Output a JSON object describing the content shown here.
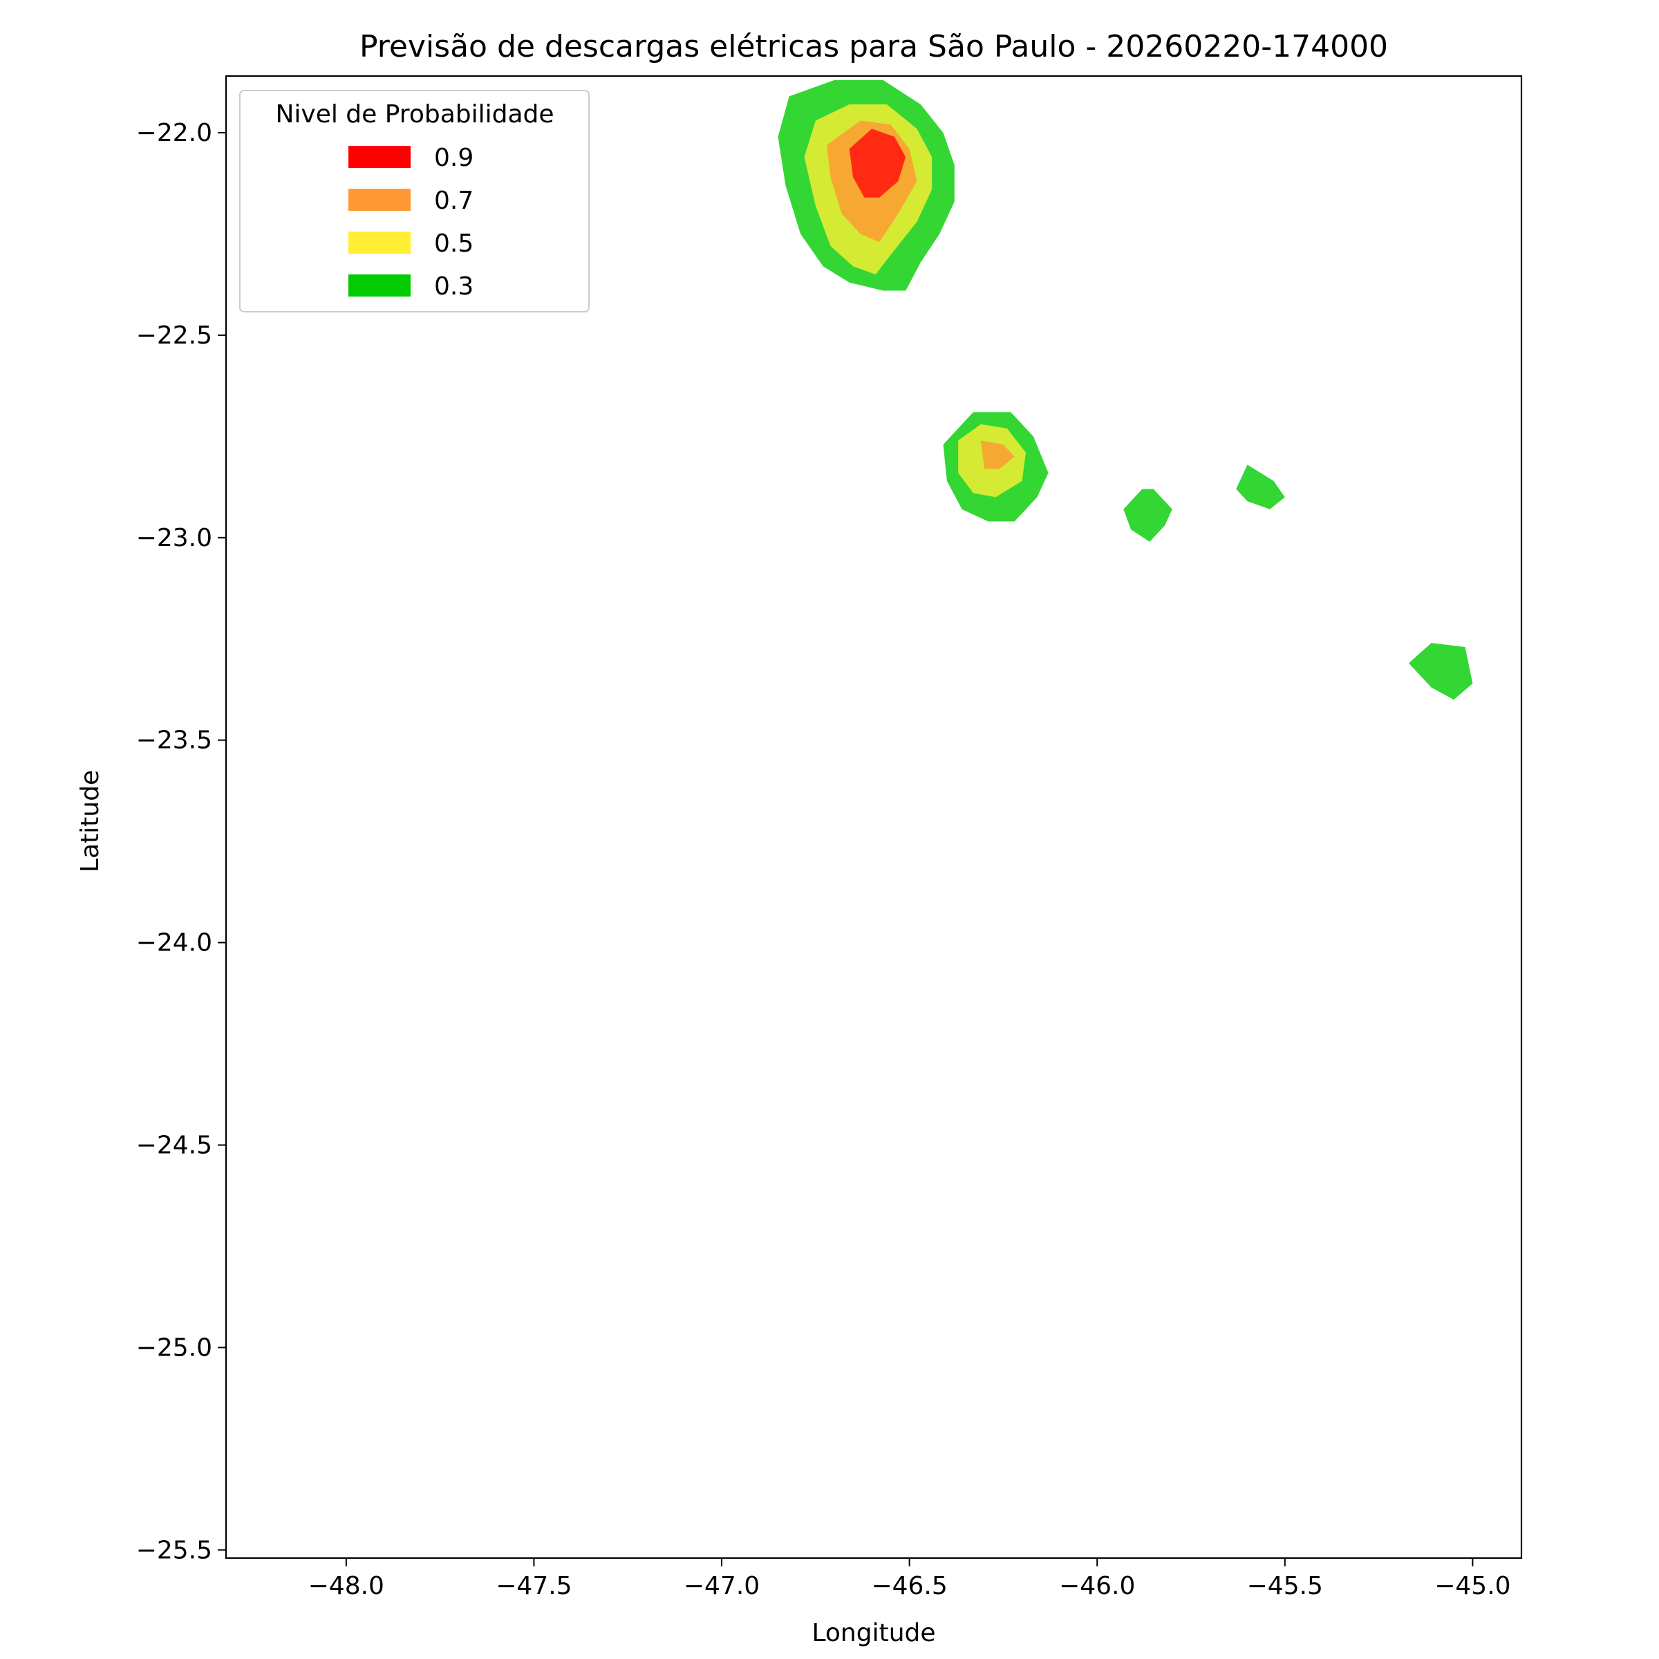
{
  "chart_data": {
    "type": "contourf",
    "title": "Previsão de descargas elétricas para São Paulo - 20260220-174000",
    "xlabel": "Longitude",
    "ylabel": "Latitude",
    "xlim": [
      -48.32,
      -44.87
    ],
    "ylim": [
      -25.52,
      -21.86
    ],
    "xticks": [
      -48.0,
      -47.5,
      -47.0,
      -46.5,
      -46.0,
      -45.5,
      -45.0
    ],
    "yticks": [
      -22.0,
      -22.5,
      -23.0,
      -23.5,
      -24.0,
      -24.5,
      -25.0,
      -25.5
    ],
    "xtick_labels": [
      "−48.0",
      "−47.5",
      "−47.0",
      "−46.5",
      "−46.0",
      "−45.5",
      "−45.0"
    ],
    "ytick_labels": [
      "−22.0",
      "−22.5",
      "−23.0",
      "−23.5",
      "−24.0",
      "−24.5",
      "−25.0",
      "−25.5"
    ],
    "grid": false,
    "legend": {
      "title": "Nivel de Probabilidade",
      "placement": "upper-left",
      "entries": [
        {
          "label": "0.9",
          "color": "#ff0000"
        },
        {
          "label": "0.7",
          "color": "#ff9933"
        },
        {
          "label": "0.5",
          "color": "#ffee33"
        },
        {
          "label": "0.3",
          "color": "#00cc00"
        }
      ]
    },
    "levels": [
      {
        "level": 0.3,
        "color": "#33d633",
        "polygons": [
          [
            [
              -46.7,
              -21.87
            ],
            [
              -46.57,
              -21.87
            ],
            [
              -46.47,
              -21.93
            ],
            [
              -46.41,
              -22.0
            ],
            [
              -46.38,
              -22.08
            ],
            [
              -46.38,
              -22.17
            ],
            [
              -46.42,
              -22.25
            ],
            [
              -46.47,
              -22.32
            ],
            [
              -46.51,
              -22.39
            ],
            [
              -46.57,
              -22.39
            ],
            [
              -46.66,
              -22.37
            ],
            [
              -46.73,
              -22.33
            ],
            [
              -46.79,
              -22.25
            ],
            [
              -46.83,
              -22.13
            ],
            [
              -46.85,
              -22.01
            ],
            [
              -46.82,
              -21.91
            ]
          ],
          [
            [
              -46.33,
              -22.69
            ],
            [
              -46.23,
              -22.69
            ],
            [
              -46.17,
              -22.75
            ],
            [
              -46.13,
              -22.84
            ],
            [
              -46.16,
              -22.9
            ],
            [
              -46.22,
              -22.96
            ],
            [
              -46.29,
              -22.96
            ],
            [
              -46.36,
              -22.93
            ],
            [
              -46.4,
              -22.86
            ],
            [
              -46.41,
              -22.77
            ]
          ],
          [
            [
              -45.88,
              -22.88
            ],
            [
              -45.85,
              -22.88
            ],
            [
              -45.8,
              -22.93
            ],
            [
              -45.82,
              -22.97
            ],
            [
              -45.86,
              -23.01
            ],
            [
              -45.91,
              -22.98
            ],
            [
              -45.93,
              -22.93
            ]
          ],
          [
            [
              -45.6,
              -22.82
            ],
            [
              -45.53,
              -22.86
            ],
            [
              -45.5,
              -22.9
            ],
            [
              -45.54,
              -22.93
            ],
            [
              -45.6,
              -22.91
            ],
            [
              -45.63,
              -22.88
            ]
          ],
          [
            [
              -45.11,
              -23.26
            ],
            [
              -45.02,
              -23.27
            ],
            [
              -45.0,
              -23.36
            ],
            [
              -45.05,
              -23.4
            ],
            [
              -45.11,
              -23.37
            ],
            [
              -45.17,
              -23.31
            ]
          ]
        ]
      },
      {
        "level": 0.5,
        "color": "#d4ea33",
        "polygons": [
          [
            [
              -46.66,
              -21.93
            ],
            [
              -46.56,
              -21.93
            ],
            [
              -46.48,
              -21.99
            ],
            [
              -46.44,
              -22.06
            ],
            [
              -46.44,
              -22.14
            ],
            [
              -46.48,
              -22.22
            ],
            [
              -46.54,
              -22.29
            ],
            [
              -46.59,
              -22.35
            ],
            [
              -46.65,
              -22.33
            ],
            [
              -46.71,
              -22.28
            ],
            [
              -46.75,
              -22.18
            ],
            [
              -46.78,
              -22.06
            ],
            [
              -46.75,
              -21.97
            ]
          ],
          [
            [
              -46.31,
              -22.72
            ],
            [
              -46.24,
              -22.73
            ],
            [
              -46.19,
              -22.79
            ],
            [
              -46.2,
              -22.86
            ],
            [
              -46.27,
              -22.9
            ],
            [
              -46.33,
              -22.89
            ],
            [
              -46.37,
              -22.84
            ],
            [
              -46.37,
              -22.76
            ]
          ]
        ]
      },
      {
        "level": 0.7,
        "color": "#f6a833",
        "polygons": [
          [
            [
              -46.63,
              -21.97
            ],
            [
              -46.55,
              -21.98
            ],
            [
              -46.5,
              -22.04
            ],
            [
              -46.48,
              -22.12
            ],
            [
              -46.53,
              -22.2
            ],
            [
              -46.58,
              -22.27
            ],
            [
              -46.63,
              -22.25
            ],
            [
              -46.68,
              -22.2
            ],
            [
              -46.71,
              -22.11
            ],
            [
              -46.72,
              -22.03
            ]
          ],
          [
            [
              -46.31,
              -22.76
            ],
            [
              -46.25,
              -22.77
            ],
            [
              -46.22,
              -22.8
            ],
            [
              -46.26,
              -22.83
            ],
            [
              -46.3,
              -22.83
            ]
          ]
        ]
      },
      {
        "level": 0.9,
        "color": "#ff2a11",
        "polygons": [
          [
            [
              -46.6,
              -21.99
            ],
            [
              -46.54,
              -22.01
            ],
            [
              -46.51,
              -22.06
            ],
            [
              -46.53,
              -22.12
            ],
            [
              -46.58,
              -22.16
            ],
            [
              -46.62,
              -22.16
            ],
            [
              -46.65,
              -22.11
            ],
            [
              -46.66,
              -22.04
            ]
          ]
        ]
      }
    ]
  }
}
